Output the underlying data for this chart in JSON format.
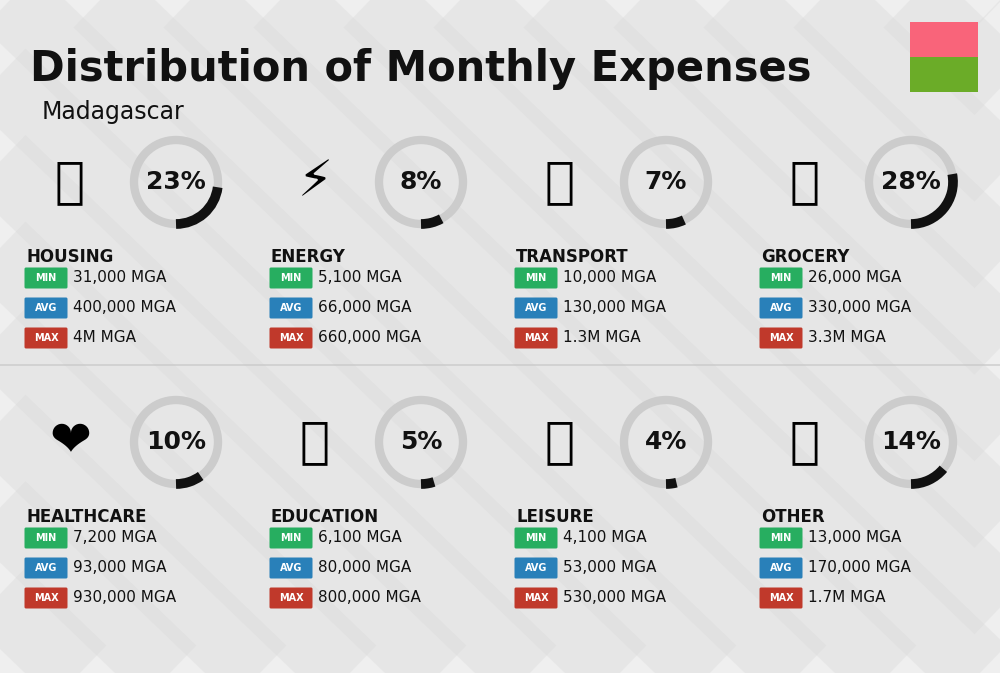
{
  "title": "Distribution of Monthly Expenses",
  "subtitle": "Madagascar",
  "bg_color": "#efefef",
  "flag_colors": [
    "#F9647A",
    "#6BAC28"
  ],
  "categories": [
    {
      "name": "HOUSING",
      "percent": 23,
      "emoji": "🏙",
      "min": "31,000 MGA",
      "avg": "400,000 MGA",
      "max": "4M MGA",
      "row": 0,
      "col": 0
    },
    {
      "name": "ENERGY",
      "percent": 8,
      "emoji": "⚡",
      "min": "5,100 MGA",
      "avg": "66,000 MGA",
      "max": "660,000 MGA",
      "row": 0,
      "col": 1
    },
    {
      "name": "TRANSPORT",
      "percent": 7,
      "emoji": "🚌",
      "min": "10,000 MGA",
      "avg": "130,000 MGA",
      "max": "1.3M MGA",
      "row": 0,
      "col": 2
    },
    {
      "name": "GROCERY",
      "percent": 28,
      "emoji": "🛒",
      "min": "26,000 MGA",
      "avg": "330,000 MGA",
      "max": "3.3M MGA",
      "row": 0,
      "col": 3
    },
    {
      "name": "HEALTHCARE",
      "percent": 10,
      "emoji": "❤",
      "min": "7,200 MGA",
      "avg": "93,000 MGA",
      "max": "930,000 MGA",
      "row": 1,
      "col": 0
    },
    {
      "name": "EDUCATION",
      "percent": 5,
      "emoji": "🎓",
      "min": "6,100 MGA",
      "avg": "80,000 MGA",
      "max": "800,000 MGA",
      "row": 1,
      "col": 1
    },
    {
      "name": "LEISURE",
      "percent": 4,
      "emoji": "🛍",
      "min": "4,100 MGA",
      "avg": "53,000 MGA",
      "max": "530,000 MGA",
      "row": 1,
      "col": 2
    },
    {
      "name": "OTHER",
      "percent": 14,
      "emoji": "💰",
      "min": "13,000 MGA",
      "avg": "170,000 MGA",
      "max": "1.7M MGA",
      "row": 1,
      "col": 3
    }
  ],
  "min_color": "#27AE60",
  "avg_color": "#2980B9",
  "max_color": "#C0392B",
  "text_color": "#111111",
  "donut_bg": "#cccccc",
  "donut_fg": "#111111",
  "title_fontsize": 30,
  "subtitle_fontsize": 17,
  "cat_fontsize": 12,
  "val_fontsize": 11,
  "pct_fontsize": 18,
  "badge_fontsize": 7,
  "icon_fontsize": 36
}
